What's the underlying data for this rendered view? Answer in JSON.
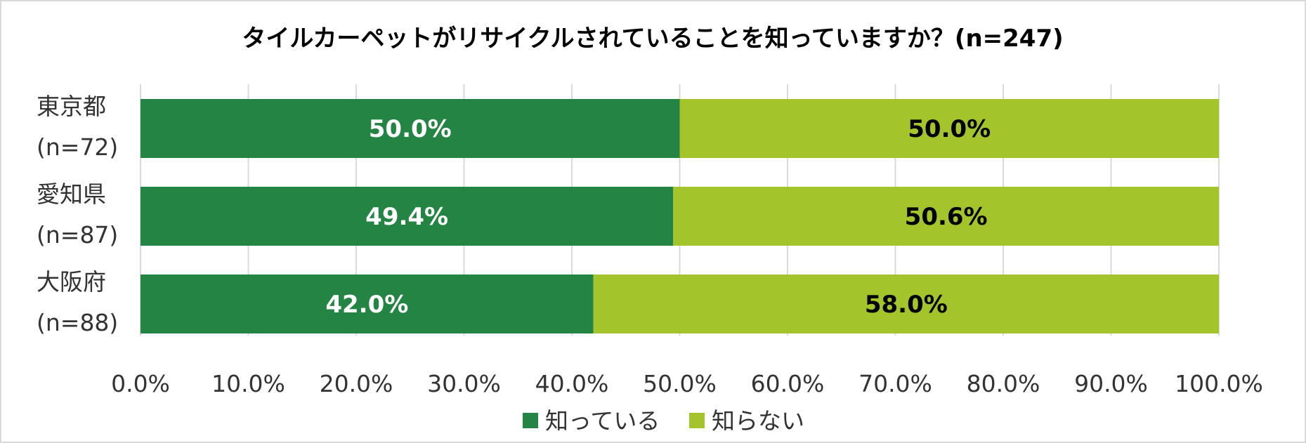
{
  "chart_data": {
    "type": "bar",
    "orientation": "horizontal",
    "stacked": true,
    "title": "タイルカーペットがリサイクルされていることを知っていますか？(n=247)",
    "categories": [
      {
        "name": "東京都",
        "n": "(n=72)"
      },
      {
        "name": "愛知県",
        "n": "(n=87)"
      },
      {
        "name": "大阪府",
        "n": "(n=88)"
      }
    ],
    "series": [
      {
        "name": "知っている",
        "color": "#238443",
        "label_color": "#ffffff",
        "values": [
          50.0,
          49.4,
          42.0
        ],
        "labels": [
          "50.0%",
          "49.4%",
          "42.0%"
        ]
      },
      {
        "name": "知らない",
        "color": "#a3c52b",
        "label_color": "#000000",
        "values": [
          50.0,
          50.6,
          58.0
        ],
        "labels": [
          "50.0%",
          "50.6%",
          "58.0%"
        ]
      }
    ],
    "xlim": [
      0,
      100
    ],
    "xticks": [
      "0.0%",
      "10.0%",
      "20.0%",
      "30.0%",
      "40.0%",
      "50.0%",
      "60.0%",
      "70.0%",
      "80.0%",
      "90.0%",
      "100.0%"
    ],
    "grid": true,
    "legend_position": "bottom"
  }
}
